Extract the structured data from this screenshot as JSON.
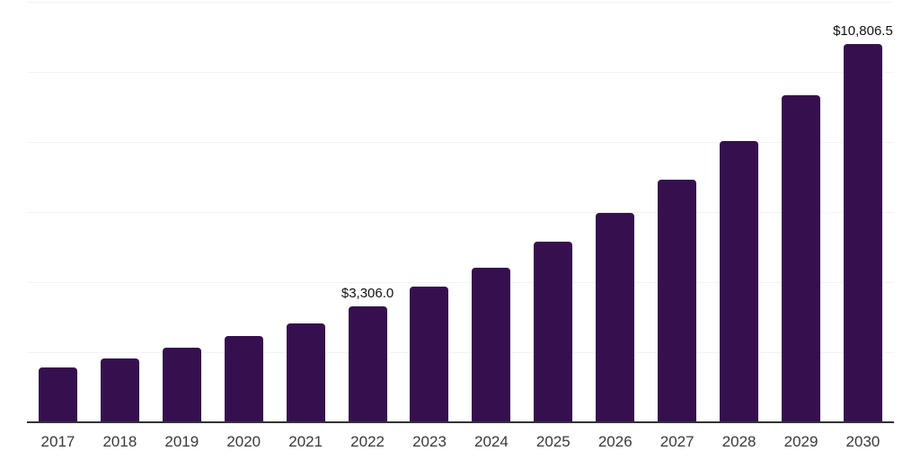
{
  "chart_data": {
    "type": "bar",
    "title": "",
    "xlabel": "",
    "ylabel": "",
    "categories": [
      "2017",
      "2018",
      "2019",
      "2020",
      "2021",
      "2022",
      "2023",
      "2024",
      "2025",
      "2026",
      "2027",
      "2028",
      "2029",
      "2030"
    ],
    "values": [
      1560,
      1830,
      2125,
      2465,
      2830,
      3306.0,
      3865,
      4420,
      5145,
      5965,
      6925,
      8035,
      9340,
      10806.5
    ],
    "data_labels": [
      "",
      "",
      "",
      "",
      "",
      "$3,306.0",
      "",
      "",
      "",
      "",
      "",
      "",
      "",
      "$10,806.5"
    ],
    "ylim": [
      0,
      12000
    ],
    "gridline_step": 2000,
    "grid": "horizontal",
    "legend": "none",
    "annotations": [
      "$3,306.0 above 2022 bar",
      "$10,806.5 above 2030 bar"
    ]
  },
  "colors": {
    "bar": "#36104E",
    "axis": "#333333",
    "gridline": "#f3f3f3",
    "data_label": "#111111",
    "tick_label": "#3a3a3a",
    "background": "#ffffff"
  }
}
